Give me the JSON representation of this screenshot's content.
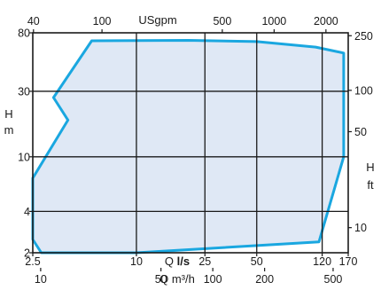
{
  "chart_data": {
    "type": "area",
    "grid": true,
    "scale": "log",
    "axes": {
      "bottom_ls": {
        "label_prefix": "Q ",
        "label_unit": "l/s",
        "ticks": [
          {
            "value": 2.5,
            "label": "2.5"
          },
          {
            "value": 10,
            "label": "10"
          },
          {
            "value": 25,
            "label": "25"
          },
          {
            "value": 50,
            "label": "50"
          },
          {
            "value": 120,
            "label": "120"
          },
          {
            "value": 170,
            "label": "170"
          }
        ]
      },
      "bottom_m3h": {
        "label": "Q m³/h",
        "ticks": [
          {
            "value": 10,
            "label": "10"
          },
          {
            "value": 50,
            "label": "50"
          },
          {
            "value": 100,
            "label": "100"
          },
          {
            "value": 200,
            "label": "200"
          },
          {
            "value": 500,
            "label": "500"
          }
        ]
      },
      "top_usgpm": {
        "label": "USgpm",
        "ticks": [
          {
            "value": 40,
            "label": "40"
          },
          {
            "value": 100,
            "label": "100"
          },
          {
            "value": 500,
            "label": "500"
          },
          {
            "value": 1000,
            "label": "1000"
          },
          {
            "value": 2000,
            "label": "2000"
          }
        ]
      },
      "left_m": {
        "label_line1": "H",
        "label_line2": "m",
        "ticks": [
          {
            "value": 2,
            "label": "2"
          },
          {
            "value": 4,
            "label": "4"
          },
          {
            "value": 10,
            "label": "10"
          },
          {
            "value": 30,
            "label": "30"
          },
          {
            "value": 80,
            "label": "80"
          }
        ]
      },
      "right_ft": {
        "label_line1": "H",
        "label_line2": "ft",
        "ticks": [
          {
            "value": 10,
            "label": "10"
          },
          {
            "value": 50,
            "label": "50"
          },
          {
            "value": 100,
            "label": "100"
          },
          {
            "value": 250,
            "label": "250"
          }
        ]
      }
    },
    "xlim_ls": [
      2.5,
      170
    ],
    "ylim_m": [
      2,
      80
    ],
    "grid_x_ls": [
      10,
      25,
      50,
      120
    ],
    "grid_y_m": [
      4,
      10,
      30
    ],
    "series": [
      {
        "kind": "operating-range",
        "x_unit": "l/s",
        "y_unit": "m",
        "points": [
          {
            "x": 2.5,
            "y": 7.0
          },
          {
            "x": 4.0,
            "y": 18.5
          },
          {
            "x": 3.3,
            "y": 27.0
          },
          {
            "x": 5.5,
            "y": 70.0
          },
          {
            "x": 20,
            "y": 70.5
          },
          {
            "x": 50,
            "y": 69.0
          },
          {
            "x": 110,
            "y": 63.0
          },
          {
            "x": 160,
            "y": 57.0
          },
          {
            "x": 160,
            "y": 10.0
          },
          {
            "x": 115,
            "y": 2.4
          },
          {
            "x": 10,
            "y": 2.0
          },
          {
            "x": 2.8,
            "y": 2.0
          },
          {
            "x": 2.5,
            "y": 2.5
          }
        ]
      }
    ],
    "colors": {
      "fill": "#dfe8f5",
      "stroke": "#1aa7e0",
      "grid": "#1a1a1a",
      "frame": "#1a1a1a",
      "text": "#1a1a1a"
    }
  }
}
